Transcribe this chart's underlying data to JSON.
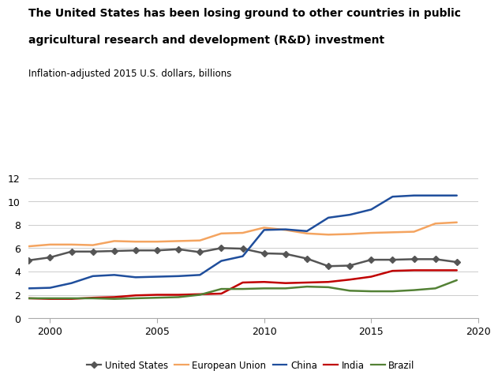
{
  "title_line1": "The United States has been losing ground to other countries in public",
  "title_line2": "agricultural research and development (R&D) investment",
  "subtitle": "Inflation-adjusted 2015 U.S. dollars, billions",
  "ylim": [
    0,
    12
  ],
  "yticks": [
    0,
    2,
    4,
    6,
    8,
    10,
    12
  ],
  "xlim": [
    1999,
    2020
  ],
  "xticks": [
    2000,
    2005,
    2010,
    2015,
    2020
  ],
  "series": {
    "United States": {
      "color": "#555555",
      "marker": "D",
      "markersize": 4,
      "linewidth": 1.8,
      "years": [
        1999,
        2000,
        2001,
        2002,
        2003,
        2004,
        2005,
        2006,
        2007,
        2008,
        2009,
        2010,
        2011,
        2012,
        2013,
        2014,
        2015,
        2016,
        2017,
        2018,
        2019
      ],
      "values": [
        4.95,
        5.2,
        5.7,
        5.7,
        5.75,
        5.8,
        5.8,
        5.9,
        5.65,
        6.0,
        5.95,
        5.55,
        5.5,
        5.1,
        4.45,
        4.5,
        5.0,
        5.0,
        5.05,
        5.05,
        4.8
      ]
    },
    "European Union": {
      "color": "#F4A460",
      "marker": null,
      "markersize": 0,
      "linewidth": 1.8,
      "years": [
        1999,
        2000,
        2001,
        2002,
        2003,
        2004,
        2005,
        2006,
        2007,
        2008,
        2009,
        2010,
        2011,
        2012,
        2013,
        2014,
        2015,
        2016,
        2017,
        2018,
        2019
      ],
      "values": [
        6.15,
        6.3,
        6.3,
        6.25,
        6.6,
        6.55,
        6.55,
        6.6,
        6.65,
        7.25,
        7.3,
        7.75,
        7.55,
        7.25,
        7.15,
        7.2,
        7.3,
        7.35,
        7.4,
        8.1,
        8.2
      ]
    },
    "China": {
      "color": "#1F4E9C",
      "marker": null,
      "markersize": 0,
      "linewidth": 1.8,
      "years": [
        1999,
        2000,
        2001,
        2002,
        2003,
        2004,
        2005,
        2006,
        2007,
        2008,
        2009,
        2010,
        2011,
        2012,
        2013,
        2014,
        2015,
        2016,
        2017,
        2018,
        2019
      ],
      "values": [
        2.55,
        2.6,
        3.0,
        3.6,
        3.7,
        3.5,
        3.55,
        3.6,
        3.7,
        4.9,
        5.3,
        7.55,
        7.6,
        7.45,
        8.6,
        8.85,
        9.3,
        10.4,
        10.5,
        10.5,
        10.5
      ]
    },
    "India": {
      "color": "#C00000",
      "marker": null,
      "markersize": 0,
      "linewidth": 1.8,
      "years": [
        1999,
        2000,
        2001,
        2002,
        2003,
        2004,
        2005,
        2006,
        2007,
        2008,
        2009,
        2010,
        2011,
        2012,
        2013,
        2014,
        2015,
        2016,
        2017,
        2018,
        2019
      ],
      "values": [
        1.7,
        1.65,
        1.65,
        1.75,
        1.8,
        1.95,
        2.0,
        2.0,
        2.05,
        2.1,
        3.05,
        3.1,
        3.0,
        3.05,
        3.1,
        3.3,
        3.55,
        4.05,
        4.1,
        4.1,
        4.1
      ]
    },
    "Brazil": {
      "color": "#538135",
      "marker": null,
      "markersize": 0,
      "linewidth": 1.8,
      "years": [
        1999,
        2000,
        2001,
        2002,
        2003,
        2004,
        2005,
        2006,
        2007,
        2008,
        2009,
        2010,
        2011,
        2012,
        2013,
        2014,
        2015,
        2016,
        2017,
        2018,
        2019
      ],
      "values": [
        1.7,
        1.7,
        1.7,
        1.7,
        1.65,
        1.7,
        1.75,
        1.8,
        2.0,
        2.5,
        2.5,
        2.55,
        2.55,
        2.7,
        2.65,
        2.35,
        2.3,
        2.3,
        2.4,
        2.55,
        3.25
      ]
    }
  },
  "legend_order": [
    "United States",
    "European Union",
    "China",
    "India",
    "Brazil"
  ],
  "background_color": "#ffffff",
  "grid_color": "#cccccc"
}
